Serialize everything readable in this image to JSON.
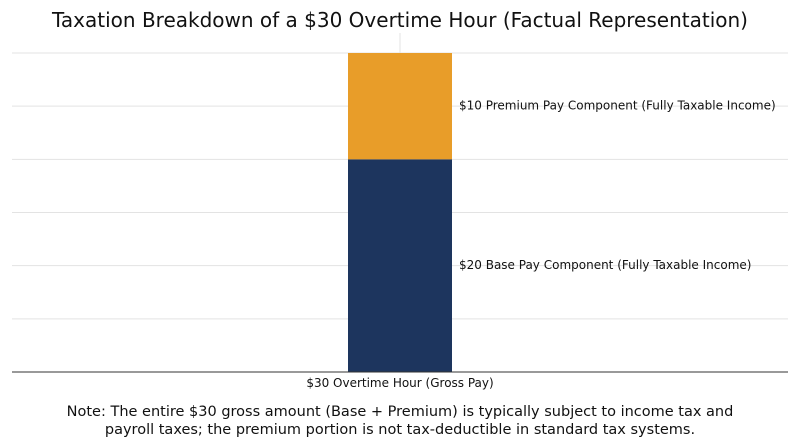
{
  "chart_data": {
    "type": "bar",
    "stacked": true,
    "title": "Taxation Breakdown of a $30 Overtime Hour (Factual Representation)",
    "xlabel": "",
    "ylabel": "",
    "categories": [
      "$30 Overtime Hour (Gross Pay)"
    ],
    "series": [
      {
        "values": [
          20
        ],
        "color": "#1d355e",
        "label": "$20 Base Pay Component (Fully Taxable Income)"
      },
      {
        "values": [
          10
        ],
        "color": "#e89d29",
        "label": "$10 Premium Pay Component (Fully Taxable Income)"
      }
    ],
    "ylim": [
      0,
      30
    ],
    "grid": true,
    "legend": "none",
    "note_lines": [
      "Note: The entire $30 gross amount (Base + Premium) is typically subject to income tax and",
      "payroll taxes; the premium portion is not tax-deductible in standard tax systems."
    ]
  }
}
